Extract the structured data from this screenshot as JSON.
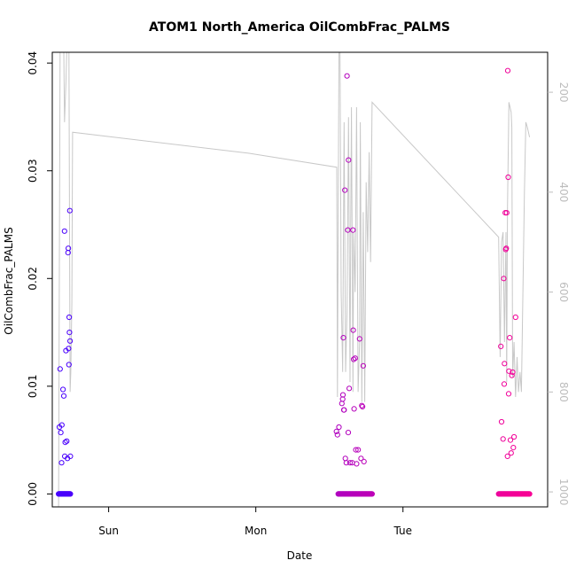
{
  "chart_data": {
    "type": "scatter",
    "title": "ATOM1 North_America OilCombFrac_PALMS",
    "xlabel": "Date",
    "ylabel": "OilCombFrac_PALMS",
    "xlim": [
      -0.383,
      2.983
    ],
    "ylim": [
      -0.0012,
      0.041
    ],
    "x_ticks": [
      {
        "value": 0,
        "label": "Sun"
      },
      {
        "value": 1,
        "label": "Mon"
      },
      {
        "value": 2,
        "label": "Tue"
      }
    ],
    "y_ticks": [
      {
        "value": 0.0,
        "label": "0.00"
      },
      {
        "value": 0.01,
        "label": "0.01"
      },
      {
        "value": 0.02,
        "label": "0.02"
      },
      {
        "value": 0.03,
        "label": "0.03"
      },
      {
        "value": 0.04,
        "label": "0.04"
      }
    ],
    "secondary_y": {
      "lim": [
        1030,
        120
      ],
      "inverted": true,
      "color": "#bdbdbd",
      "ticks": [
        {
          "value": 200,
          "label": "200"
        },
        {
          "value": 400,
          "label": "400"
        },
        {
          "value": 600,
          "label": "600"
        },
        {
          "value": 800,
          "label": "800"
        },
        {
          "value": 1000,
          "label": "1000"
        }
      ]
    },
    "grid": false,
    "altitude_line": {
      "color": "#c8c8c8",
      "points": [
        [
          -0.34,
          1030
        ],
        [
          -0.33,
          120
        ],
        [
          -0.305,
          120
        ],
        [
          -0.3,
          260
        ],
        [
          -0.29,
          180
        ],
        [
          -0.285,
          120
        ],
        [
          -0.27,
          120
        ],
        [
          -0.262,
          800
        ],
        [
          -0.257,
          760
        ],
        [
          -0.25,
          620
        ],
        [
          -0.245,
          280
        ],
        [
          0.95,
          322
        ],
        [
          1.55,
          350
        ],
        [
          1.555,
          810
        ],
        [
          1.56,
          430
        ],
        [
          1.565,
          120
        ],
        [
          1.572,
          120
        ],
        [
          1.58,
          600
        ],
        [
          1.59,
          760
        ],
        [
          1.6,
          260
        ],
        [
          1.61,
          760
        ],
        [
          1.62,
          640
        ],
        [
          1.63,
          250
        ],
        [
          1.64,
          780
        ],
        [
          1.645,
          460
        ],
        [
          1.65,
          230
        ],
        [
          1.66,
          800
        ],
        [
          1.665,
          480
        ],
        [
          1.675,
          600
        ],
        [
          1.685,
          230
        ],
        [
          1.695,
          800
        ],
        [
          1.705,
          700
        ],
        [
          1.71,
          260
        ],
        [
          1.72,
          820
        ],
        [
          1.73,
          440
        ],
        [
          1.74,
          820
        ],
        [
          1.75,
          380
        ],
        [
          1.76,
          520
        ],
        [
          1.77,
          320
        ],
        [
          1.78,
          540
        ],
        [
          1.79,
          220
        ],
        [
          2.65,
          490
        ],
        [
          2.66,
          730
        ],
        [
          2.67,
          500
        ],
        [
          2.68,
          480
        ],
        [
          2.69,
          700
        ],
        [
          2.7,
          480
        ],
        [
          2.705,
          780
        ],
        [
          2.71,
          430
        ],
        [
          2.72,
          220
        ],
        [
          2.735,
          240
        ],
        [
          2.74,
          270
        ],
        [
          2.745,
          770
        ],
        [
          2.755,
          700
        ],
        [
          2.765,
          810
        ],
        [
          2.775,
          730
        ],
        [
          2.785,
          800
        ],
        [
          2.795,
          760
        ],
        [
          2.805,
          800
        ],
        [
          2.815,
          600
        ],
        [
          2.825,
          400
        ],
        [
          2.835,
          260
        ],
        [
          2.845,
          270
        ],
        [
          2.86,
          290
        ]
      ]
    },
    "series": [
      {
        "color_start": "#4400ff",
        "color_end": "#ff0090",
        "points": [
          [
            -0.335,
            0.0062
          ],
          [
            -0.33,
            0.0116
          ],
          [
            -0.325,
            0.0057
          ],
          [
            -0.32,
            0.0029
          ],
          [
            -0.318,
            0.0064
          ],
          [
            -0.31,
            0.0097
          ],
          [
            -0.305,
            0.0091
          ],
          [
            -0.3,
            0.0244
          ],
          [
            -0.298,
            0.0035
          ],
          [
            -0.295,
            0.0048
          ],
          [
            -0.29,
            0.0133
          ],
          [
            -0.285,
            0.0049
          ],
          [
            -0.28,
            0.0033
          ],
          [
            -0.276,
            0.0224
          ],
          [
            -0.274,
            0.0228
          ],
          [
            -0.272,
            0.0135
          ],
          [
            -0.27,
            0.012
          ],
          [
            -0.268,
            0.0164
          ],
          [
            -0.266,
            0.015
          ],
          [
            -0.264,
            0.0263
          ],
          [
            -0.262,
            0.0142
          ],
          [
            -0.26,
            0.0035
          ],
          [
            1.548,
            0.0058
          ],
          [
            1.555,
            0.0055
          ],
          [
            1.565,
            0.0062
          ],
          [
            1.585,
            0.0084
          ],
          [
            1.59,
            0.0088
          ],
          [
            1.592,
            0.0092
          ],
          [
            1.595,
            0.0145
          ],
          [
            1.598,
            0.0078
          ],
          [
            1.6,
            0.0078
          ],
          [
            1.605,
            0.0282
          ],
          [
            1.608,
            0.0033
          ],
          [
            1.615,
            0.0029
          ],
          [
            1.62,
            0.0388
          ],
          [
            1.625,
            0.0245
          ],
          [
            1.628,
            0.0057
          ],
          [
            1.63,
            0.031
          ],
          [
            1.635,
            0.0098
          ],
          [
            1.64,
            0.0029
          ],
          [
            1.655,
            0.0029
          ],
          [
            1.66,
            0.0245
          ],
          [
            1.662,
            0.0152
          ],
          [
            1.665,
            0.0125
          ],
          [
            1.668,
            0.0079
          ],
          [
            1.675,
            0.0126
          ],
          [
            1.68,
            0.0041
          ],
          [
            1.685,
            0.0028
          ],
          [
            1.695,
            0.0041
          ],
          [
            1.705,
            0.0144
          ],
          [
            1.715,
            0.0033
          ],
          [
            1.72,
            0.0082
          ],
          [
            1.725,
            0.0081
          ],
          [
            1.73,
            0.0119
          ],
          [
            1.735,
            0.003
          ],
          [
            2.665,
            0.0137
          ],
          [
            2.67,
            0.0067
          ],
          [
            2.68,
            0.0051
          ],
          [
            2.685,
            0.02
          ],
          [
            2.688,
            0.0102
          ],
          [
            2.69,
            0.0121
          ],
          [
            2.695,
            0.0261
          ],
          [
            2.698,
            0.0227
          ],
          [
            2.702,
            0.0228
          ],
          [
            2.705,
            0.0261
          ],
          [
            2.71,
            0.0035
          ],
          [
            2.712,
            0.0393
          ],
          [
            2.715,
            0.0294
          ],
          [
            2.718,
            0.0093
          ],
          [
            2.72,
            0.0114
          ],
          [
            2.725,
            0.0145
          ],
          [
            2.73,
            0.005
          ],
          [
            2.735,
            0.0038
          ],
          [
            2.74,
            0.011
          ],
          [
            2.745,
            0.0113
          ],
          [
            2.75,
            0.0043
          ],
          [
            2.755,
            0.0053
          ],
          [
            2.765,
            0.0164
          ]
        ],
        "zero_clusters": [
          [
            -0.34,
            -0.26,
            26
          ],
          [
            1.56,
            1.79,
            50
          ],
          [
            2.65,
            2.86,
            45
          ]
        ]
      }
    ]
  }
}
